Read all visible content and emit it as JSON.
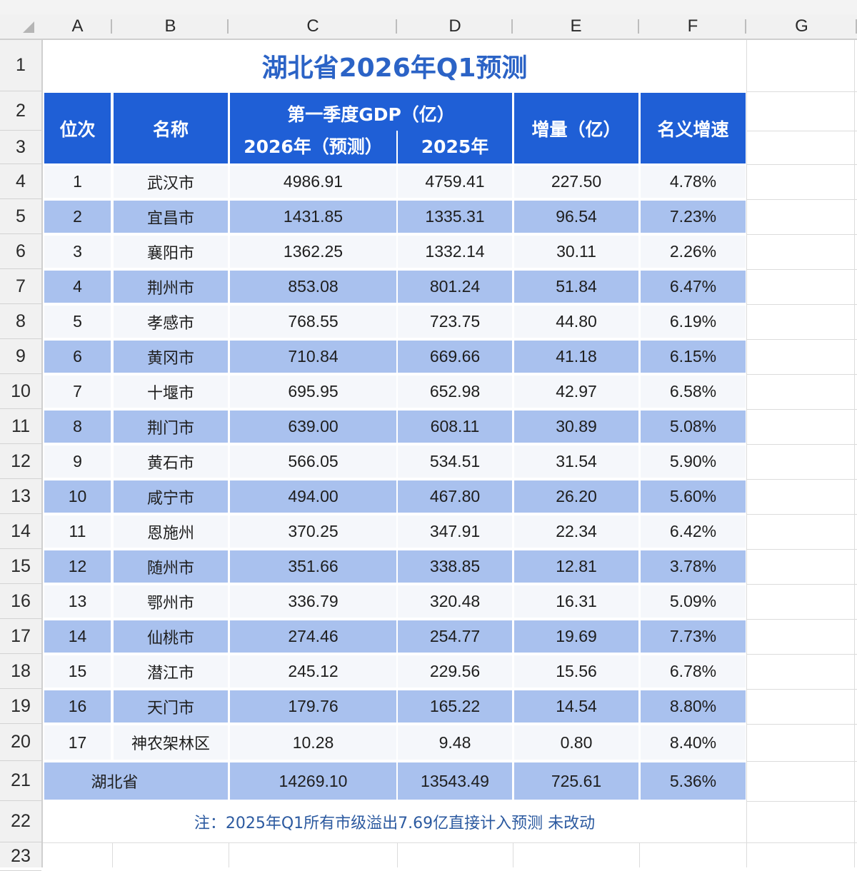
{
  "sheet": {
    "column_headers": [
      "A",
      "B",
      "C",
      "D",
      "E",
      "F",
      "G"
    ],
    "row_headers": [
      "1",
      "2",
      "3",
      "4",
      "5",
      "6",
      "7",
      "8",
      "9",
      "10",
      "11",
      "12",
      "13",
      "14",
      "15",
      "16",
      "17",
      "18",
      "19",
      "20",
      "21",
      "22",
      "23"
    ]
  },
  "title": "湖北省2026年Q1预测",
  "table_header": {
    "rank": "位次",
    "name": "名称",
    "gdp_group": "第一季度GDP（亿）",
    "gdp_2026": "2026年（预测）",
    "gdp_2025": "2025年",
    "increase": "增量（亿）",
    "growth": "名义增速"
  },
  "rows": [
    {
      "rank": "1",
      "name": "武汉市",
      "gdp_2026": "4986.91",
      "gdp_2025": "4759.41",
      "increase": "227.50",
      "growth": "4.78%"
    },
    {
      "rank": "2",
      "name": "宜昌市",
      "gdp_2026": "1431.85",
      "gdp_2025": "1335.31",
      "increase": "96.54",
      "growth": "7.23%"
    },
    {
      "rank": "3",
      "name": "襄阳市",
      "gdp_2026": "1362.25",
      "gdp_2025": "1332.14",
      "increase": "30.11",
      "growth": "2.26%"
    },
    {
      "rank": "4",
      "name": "荆州市",
      "gdp_2026": "853.08",
      "gdp_2025": "801.24",
      "increase": "51.84",
      "growth": "6.47%"
    },
    {
      "rank": "5",
      "name": "孝感市",
      "gdp_2026": "768.55",
      "gdp_2025": "723.75",
      "increase": "44.80",
      "growth": "6.19%"
    },
    {
      "rank": "6",
      "name": "黄冈市",
      "gdp_2026": "710.84",
      "gdp_2025": "669.66",
      "increase": "41.18",
      "growth": "6.15%"
    },
    {
      "rank": "7",
      "name": "十堰市",
      "gdp_2026": "695.95",
      "gdp_2025": "652.98",
      "increase": "42.97",
      "growth": "6.58%"
    },
    {
      "rank": "8",
      "name": "荆门市",
      "gdp_2026": "639.00",
      "gdp_2025": "608.11",
      "increase": "30.89",
      "growth": "5.08%"
    },
    {
      "rank": "9",
      "name": "黄石市",
      "gdp_2026": "566.05",
      "gdp_2025": "534.51",
      "increase": "31.54",
      "growth": "5.90%"
    },
    {
      "rank": "10",
      "name": "咸宁市",
      "gdp_2026": "494.00",
      "gdp_2025": "467.80",
      "increase": "26.20",
      "growth": "5.60%"
    },
    {
      "rank": "11",
      "name": "恩施州",
      "gdp_2026": "370.25",
      "gdp_2025": "347.91",
      "increase": "22.34",
      "growth": "6.42%"
    },
    {
      "rank": "12",
      "name": "随州市",
      "gdp_2026": "351.66",
      "gdp_2025": "338.85",
      "increase": "12.81",
      "growth": "3.78%"
    },
    {
      "rank": "13",
      "name": "鄂州市",
      "gdp_2026": "336.79",
      "gdp_2025": "320.48",
      "increase": "16.31",
      "growth": "5.09%"
    },
    {
      "rank": "14",
      "name": "仙桃市",
      "gdp_2026": "274.46",
      "gdp_2025": "254.77",
      "increase": "19.69",
      "growth": "7.73%"
    },
    {
      "rank": "15",
      "name": "潜江市",
      "gdp_2026": "245.12",
      "gdp_2025": "229.56",
      "increase": "15.56",
      "growth": "6.78%"
    },
    {
      "rank": "16",
      "name": "天门市",
      "gdp_2026": "179.76",
      "gdp_2025": "165.22",
      "increase": "14.54",
      "growth": "8.80%"
    },
    {
      "rank": "17",
      "name": "神农架林区",
      "gdp_2026": "10.28",
      "gdp_2025": "9.48",
      "increase": "0.80",
      "growth": "8.40%"
    }
  ],
  "total": {
    "name": "湖北省",
    "gdp_2026": "14269.10",
    "gdp_2025": "13543.49",
    "increase": "725.61",
    "growth": "5.36%"
  },
  "note": "注：2025年Q1所有市级溢出7.69亿直接计入预测 未改动",
  "colors": {
    "header_blue": "#1f5fd6",
    "title_blue": "#2b63c6",
    "band_blue": "#a9c1ee",
    "band_light": "#f5f7fb",
    "note_blue": "#2c5aa0"
  }
}
